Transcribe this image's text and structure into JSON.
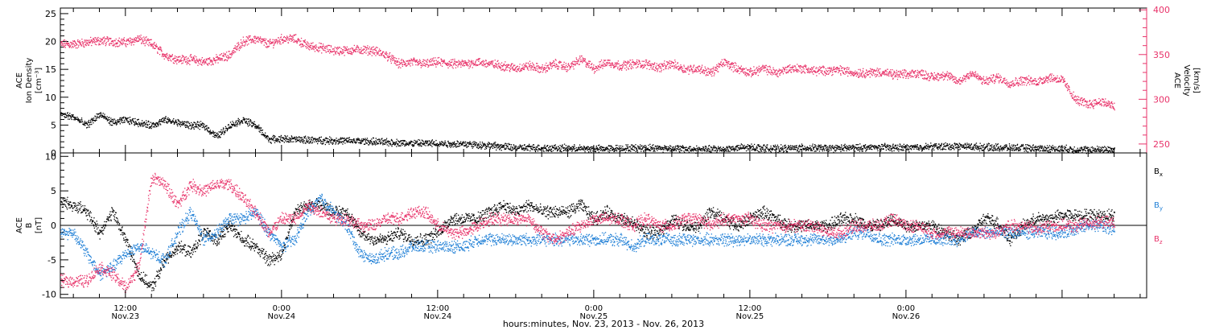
{
  "colors": {
    "black": "#000000",
    "pink": "#e8336a",
    "blue": "#1f7fd6"
  },
  "xlabel": "hours:minutes, Nov. 23, 2013 - Nov. 26, 2013",
  "x_ticks": [
    {
      "time": "12:00",
      "date": "Nov.23"
    },
    {
      "time": "0:00",
      "date": "Nov.24"
    },
    {
      "time": "12:00",
      "date": "Nov.24"
    },
    {
      "time": "0:00",
      "date": "Nov.25"
    },
    {
      "time": "12:00",
      "date": "Nov.25"
    },
    {
      "time": "0:00",
      "date": "Nov.26"
    }
  ],
  "chart_data": [
    {
      "type": "scatter",
      "x_unit": "hours since 2013-11-23 00:00",
      "xlim": [
        7.0,
        90.5
      ],
      "ylabel_left": [
        "ACE",
        "Ion Density",
        "[cm⁻³]"
      ],
      "ylim_left": [
        0,
        26
      ],
      "yticks_left": [
        "0",
        "5",
        "10",
        "15",
        "20",
        "25"
      ],
      "ylabel_right": [
        "ACE",
        "Velocity",
        "[km/s]"
      ],
      "ylim_right": [
        240,
        402
      ],
      "yticks_right": [
        "250",
        "300",
        "350",
        "400"
      ],
      "series": [
        {
          "name": "Ion Density",
          "axis": "left",
          "color": "#000000",
          "x": [
            7,
            8,
            9,
            10,
            11,
            12,
            13,
            14,
            15,
            16,
            17,
            18,
            19,
            20,
            21,
            22,
            23,
            24,
            26,
            28,
            30,
            32,
            34,
            36,
            37,
            38,
            40,
            42,
            44,
            46,
            48,
            50,
            52,
            54,
            56,
            58,
            60,
            62,
            64,
            66,
            68,
            70,
            72,
            74,
            76,
            78,
            80,
            82,
            84,
            86,
            87,
            88
          ],
          "y": [
            7,
            6.5,
            5,
            7,
            5.5,
            6,
            5.5,
            5,
            6,
            5.5,
            5,
            5,
            3,
            5,
            6,
            5,
            2.5,
            2.6,
            2.4,
            2.3,
            2.2,
            2,
            1.8,
            1.8,
            1.7,
            1.7,
            1.4,
            1,
            1,
            0.9,
            0.8,
            0.9,
            1,
            0.9,
            0.7,
            0.8,
            1.1,
            0.8,
            1,
            0.9,
            1,
            1.1,
            1,
            1.2,
            1.3,
            1.1,
            1,
            0.9,
            0.8,
            0.6,
            0.7,
            0.7
          ]
        },
        {
          "name": "Velocity",
          "axis": "right",
          "color": "#e8336a",
          "x": [
            7,
            8,
            9,
            10,
            11,
            12,
            13,
            14,
            15,
            16,
            17,
            18,
            19,
            20,
            21,
            22,
            23,
            24,
            25,
            26,
            27,
            28,
            29,
            30,
            31,
            32,
            33,
            34,
            35,
            36,
            37,
            38,
            39,
            40,
            41,
            42,
            43,
            44,
            45,
            46,
            47,
            48,
            49,
            50,
            51,
            52,
            53,
            54,
            55,
            56,
            57,
            58,
            59,
            60,
            61,
            62,
            63,
            64,
            65,
            66,
            67,
            68,
            69,
            70,
            71,
            72,
            73,
            74,
            75,
            76,
            77,
            78,
            79,
            80,
            81,
            82,
            83,
            84,
            85,
            86,
            87,
            88
          ],
          "y": [
            362,
            362,
            364,
            366,
            365,
            364,
            368,
            362,
            350,
            345,
            345,
            342,
            345,
            350,
            365,
            368,
            362,
            368,
            368,
            360,
            358,
            355,
            355,
            356,
            355,
            350,
            340,
            342,
            340,
            342,
            340,
            340,
            342,
            340,
            338,
            335,
            338,
            334,
            340,
            336,
            345,
            335,
            342,
            338,
            340,
            340,
            336,
            340,
            334,
            335,
            330,
            342,
            335,
            330,
            335,
            330,
            335,
            335,
            332,
            333,
            333,
            330,
            330,
            331,
            328,
            328,
            330,
            325,
            328,
            320,
            330,
            320,
            325,
            318,
            322,
            320,
            325,
            322,
            300,
            295,
            298,
            292
          ]
        }
      ]
    },
    {
      "type": "scatter",
      "x_unit": "hours since 2013-11-23 00:00",
      "xlim": [
        7.0,
        90.5
      ],
      "ylabel_left": [
        "ACE",
        "B",
        "[nT]"
      ],
      "ylim_left": [
        -10.5,
        10.5
      ],
      "yticks_left": [
        "-10",
        "-5",
        "0",
        "5",
        "10"
      ],
      "zero_line": true,
      "legend_position": "right",
      "series": [
        {
          "name": "B",
          "sub": "x",
          "color": "#000000",
          "x": [
            7,
            8,
            9,
            10,
            11,
            12,
            13,
            14,
            15,
            16,
            17,
            18,
            19,
            20,
            21,
            22,
            23,
            24,
            25,
            26,
            27,
            28,
            29,
            30,
            31,
            32,
            33,
            34,
            35,
            36,
            37,
            38,
            39,
            40,
            41,
            42,
            43,
            44,
            45,
            46,
            47,
            48,
            49,
            50,
            51,
            52,
            53,
            54,
            55,
            56,
            57,
            58,
            59,
            60,
            61,
            62,
            63,
            64,
            65,
            66,
            67,
            68,
            69,
            70,
            71,
            72,
            73,
            74,
            75,
            76,
            77,
            78,
            79,
            80,
            81,
            82,
            83,
            84,
            85,
            86,
            87,
            88
          ],
          "y": [
            3.5,
            3,
            2,
            -1,
            2,
            -2,
            -7,
            -9,
            -5,
            -3,
            -4,
            -1,
            -2,
            0,
            -2,
            -3,
            -5,
            -4,
            2,
            3,
            3,
            2,
            2,
            -1,
            -2,
            -2,
            -1,
            -2,
            -2,
            -1,
            1,
            1,
            1,
            2,
            3,
            2,
            3,
            2,
            2,
            2,
            3,
            1,
            2,
            1,
            0.5,
            -1,
            -1,
            1,
            0,
            0,
            2,
            1,
            0,
            1,
            2,
            1,
            0,
            0,
            0,
            0,
            1,
            1,
            0,
            0,
            1,
            0,
            0,
            0,
            -1,
            -2,
            -1,
            1,
            0.5,
            -2,
            0,
            1,
            1,
            1.5,
            1.5,
            1.5,
            1.5,
            1.5
          ]
        },
        {
          "name": "B",
          "sub": "y",
          "color": "#1f7fd6",
          "x": [
            7,
            8,
            9,
            10,
            11,
            12,
            13,
            14,
            15,
            16,
            17,
            18,
            19,
            20,
            21,
            22,
            23,
            24,
            25,
            26,
            27,
            28,
            29,
            30,
            31,
            32,
            33,
            34,
            35,
            36,
            37,
            38,
            39,
            40,
            41,
            42,
            43,
            44,
            45,
            46,
            47,
            48,
            49,
            50,
            51,
            52,
            53,
            54,
            55,
            56,
            57,
            58,
            59,
            60,
            61,
            62,
            63,
            64,
            65,
            66,
            67,
            68,
            69,
            70,
            71,
            72,
            73,
            74,
            75,
            76,
            77,
            78,
            79,
            80,
            81,
            82,
            83,
            84,
            85,
            86,
            87,
            88
          ],
          "y": [
            -1,
            -1,
            -4,
            -7,
            -6,
            -4,
            -3,
            -4,
            -5,
            -1,
            2,
            -2,
            -1,
            1,
            1,
            2,
            -1,
            -3,
            -2,
            2,
            4,
            2,
            0,
            -4,
            -5,
            -4,
            -4,
            -3,
            -3,
            -3,
            -3,
            -3,
            -2,
            -2,
            -2,
            -2,
            -2,
            -2,
            -2,
            -2,
            -2,
            -2,
            -2,
            -2,
            -3,
            -2,
            -2,
            -2,
            -2,
            -2,
            -2,
            -2,
            -2,
            -2,
            -2,
            -2,
            -2,
            -2,
            -2,
            -2,
            -2,
            -1,
            -1,
            -2,
            -2,
            -2,
            -2,
            -2,
            -2,
            -2,
            -1,
            -1,
            -1,
            -1,
            -1,
            -1,
            -1,
            -1,
            -0.5,
            0,
            0,
            -0.5
          ]
        },
        {
          "name": "B",
          "sub": "z",
          "color": "#e8336a",
          "x": [
            7,
            8,
            9,
            10,
            11,
            12,
            13,
            14,
            15,
            16,
            17,
            18,
            19,
            20,
            21,
            22,
            23,
            24,
            25,
            26,
            27,
            28,
            29,
            30,
            31,
            32,
            33,
            34,
            35,
            36,
            37,
            38,
            39,
            40,
            41,
            42,
            43,
            44,
            45,
            46,
            47,
            48,
            49,
            50,
            51,
            52,
            53,
            54,
            55,
            56,
            57,
            58,
            59,
            60,
            61,
            62,
            63,
            64,
            65,
            66,
            67,
            68,
            69,
            70,
            71,
            72,
            73,
            74,
            75,
            76,
            77,
            78,
            79,
            80,
            81,
            82,
            83,
            84,
            85,
            86,
            87,
            88
          ],
          "y": [
            -8,
            -8,
            -8,
            -6,
            -7,
            -9,
            -6,
            7,
            6,
            3,
            6,
            5,
            6,
            6,
            4,
            2,
            -1,
            1,
            1,
            3,
            2,
            1,
            1,
            0,
            0,
            1,
            1,
            2,
            2,
            0,
            -1,
            -1,
            0,
            1,
            1,
            1,
            1,
            -1,
            -2,
            -1,
            0,
            1,
            1,
            1,
            0,
            1,
            0,
            0,
            1,
            1,
            0,
            1,
            1,
            1,
            0,
            0,
            0,
            0,
            0,
            -1,
            -1,
            0,
            0,
            0,
            1,
            0,
            0,
            -1,
            -1,
            -1,
            -1,
            -1,
            -1,
            0,
            0,
            -0.5,
            0,
            0,
            0,
            0.5,
            0.5,
            0.5
          ]
        }
      ]
    }
  ]
}
